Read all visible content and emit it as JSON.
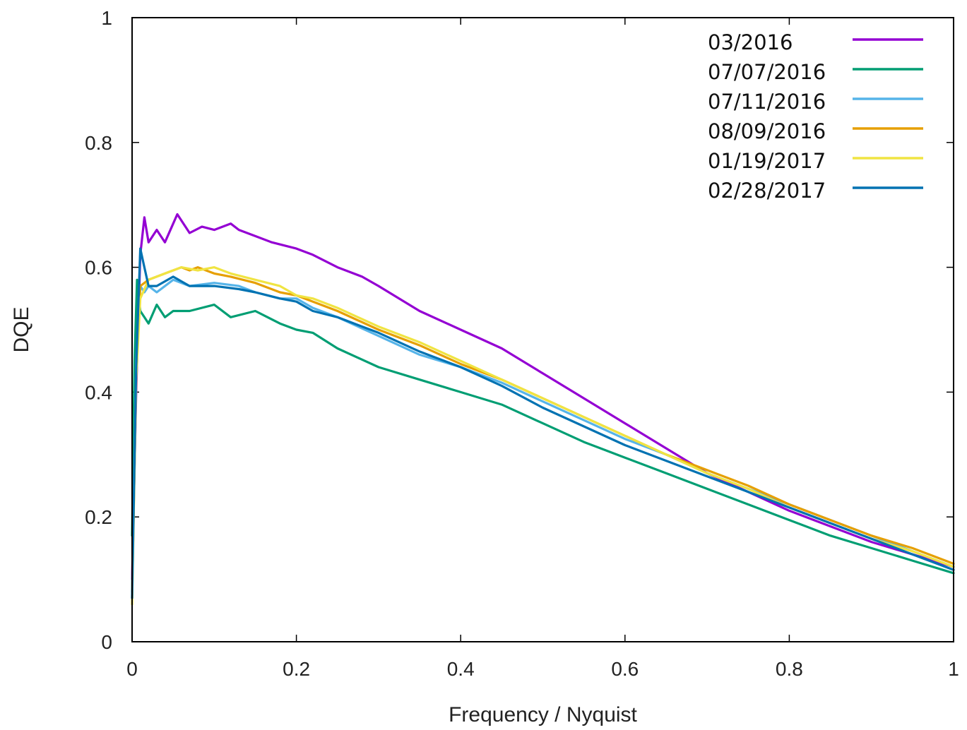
{
  "chart_data": {
    "type": "line",
    "title": "",
    "xlabel": "Frequency / Nyquist",
    "ylabel": "DQE",
    "xlim": [
      0,
      1
    ],
    "ylim": [
      0,
      1
    ],
    "x_ticks": [
      "0",
      "0.2",
      "0.4",
      "0.6",
      "0.8",
      "1"
    ],
    "y_ticks": [
      "0",
      "0.2",
      "0.4",
      "0.6",
      "0.8",
      "1"
    ],
    "grid": false,
    "legend_position": "top-right",
    "series": [
      {
        "name": "03/2016",
        "color": "#9400d3",
        "x": [
          0,
          0.005,
          0.01,
          0.015,
          0.02,
          0.03,
          0.04,
          0.05,
          0.055,
          0.07,
          0.085,
          0.1,
          0.12,
          0.13,
          0.15,
          0.17,
          0.2,
          0.22,
          0.25,
          0.28,
          0.3,
          0.35,
          0.4,
          0.45,
          0.5,
          0.55,
          0.6,
          0.65,
          0.7,
          0.75,
          0.8,
          0.85,
          0.9,
          0.95,
          1.0
        ],
        "y": [
          0.1,
          0.4,
          0.62,
          0.68,
          0.64,
          0.66,
          0.64,
          0.67,
          0.685,
          0.655,
          0.665,
          0.66,
          0.67,
          0.66,
          0.65,
          0.64,
          0.63,
          0.62,
          0.6,
          0.585,
          0.57,
          0.53,
          0.5,
          0.47,
          0.43,
          0.39,
          0.35,
          0.31,
          0.27,
          0.24,
          0.21,
          0.185,
          0.16,
          0.14,
          0.12
        ]
      },
      {
        "name": "07/07/2016",
        "color": "#009e73",
        "x": [
          0,
          0.003,
          0.006,
          0.01,
          0.015,
          0.02,
          0.03,
          0.04,
          0.05,
          0.07,
          0.1,
          0.12,
          0.15,
          0.18,
          0.2,
          0.22,
          0.25,
          0.3,
          0.35,
          0.4,
          0.45,
          0.5,
          0.55,
          0.6,
          0.65,
          0.7,
          0.75,
          0.8,
          0.85,
          0.9,
          0.95,
          1.0
        ],
        "y": [
          0.17,
          0.45,
          0.58,
          0.53,
          0.52,
          0.51,
          0.54,
          0.52,
          0.53,
          0.53,
          0.54,
          0.52,
          0.53,
          0.51,
          0.5,
          0.495,
          0.47,
          0.44,
          0.42,
          0.4,
          0.38,
          0.35,
          0.32,
          0.295,
          0.27,
          0.245,
          0.22,
          0.195,
          0.17,
          0.15,
          0.13,
          0.11
        ]
      },
      {
        "name": "07/11/2016",
        "color": "#56b4e9",
        "x": [
          0,
          0.005,
          0.01,
          0.015,
          0.02,
          0.03,
          0.05,
          0.07,
          0.1,
          0.13,
          0.15,
          0.18,
          0.2,
          0.22,
          0.25,
          0.3,
          0.35,
          0.4,
          0.45,
          0.5,
          0.55,
          0.6,
          0.65,
          0.7,
          0.75,
          0.8,
          0.85,
          0.9,
          0.95,
          1.0
        ],
        "y": [
          0.08,
          0.45,
          0.57,
          0.56,
          0.57,
          0.56,
          0.58,
          0.57,
          0.575,
          0.57,
          0.56,
          0.55,
          0.55,
          0.535,
          0.52,
          0.49,
          0.46,
          0.44,
          0.415,
          0.385,
          0.355,
          0.325,
          0.3,
          0.27,
          0.245,
          0.22,
          0.195,
          0.17,
          0.145,
          0.12
        ]
      },
      {
        "name": "08/09/2016",
        "color": "#e69f00",
        "x": [
          0,
          0.005,
          0.01,
          0.02,
          0.04,
          0.06,
          0.07,
          0.08,
          0.1,
          0.12,
          0.15,
          0.18,
          0.2,
          0.22,
          0.25,
          0.3,
          0.35,
          0.4,
          0.45,
          0.5,
          0.55,
          0.6,
          0.65,
          0.7,
          0.75,
          0.8,
          0.85,
          0.9,
          0.95,
          1.0
        ],
        "y": [
          0.07,
          0.43,
          0.57,
          0.58,
          0.59,
          0.6,
          0.595,
          0.6,
          0.59,
          0.585,
          0.575,
          0.56,
          0.555,
          0.545,
          0.53,
          0.5,
          0.475,
          0.445,
          0.42,
          0.39,
          0.36,
          0.33,
          0.3,
          0.275,
          0.25,
          0.22,
          0.195,
          0.17,
          0.15,
          0.125
        ]
      },
      {
        "name": "01/19/2017",
        "color": "#f0e442",
        "x": [
          0,
          0.005,
          0.01,
          0.02,
          0.04,
          0.06,
          0.08,
          0.1,
          0.12,
          0.15,
          0.18,
          0.2,
          0.22,
          0.25,
          0.3,
          0.35,
          0.4,
          0.45,
          0.5,
          0.55,
          0.6,
          0.65,
          0.7,
          0.75,
          0.8,
          0.85,
          0.9,
          0.95,
          1.0
        ],
        "y": [
          0.06,
          0.42,
          0.55,
          0.58,
          0.59,
          0.6,
          0.595,
          0.6,
          0.59,
          0.58,
          0.57,
          0.555,
          0.55,
          0.535,
          0.505,
          0.48,
          0.45,
          0.42,
          0.39,
          0.36,
          0.33,
          0.3,
          0.27,
          0.245,
          0.215,
          0.19,
          0.165,
          0.145,
          0.12
        ]
      },
      {
        "name": "02/28/2017",
        "color": "#0072b2",
        "x": [
          0,
          0.005,
          0.01,
          0.015,
          0.02,
          0.03,
          0.05,
          0.07,
          0.1,
          0.13,
          0.15,
          0.18,
          0.2,
          0.22,
          0.25,
          0.3,
          0.35,
          0.4,
          0.45,
          0.5,
          0.55,
          0.6,
          0.65,
          0.7,
          0.75,
          0.8,
          0.85,
          0.9,
          0.95,
          1.0
        ],
        "y": [
          0.07,
          0.44,
          0.63,
          0.6,
          0.57,
          0.57,
          0.585,
          0.57,
          0.57,
          0.565,
          0.56,
          0.55,
          0.545,
          0.53,
          0.52,
          0.495,
          0.465,
          0.44,
          0.41,
          0.375,
          0.345,
          0.315,
          0.29,
          0.265,
          0.24,
          0.215,
          0.19,
          0.165,
          0.14,
          0.115
        ]
      }
    ]
  }
}
